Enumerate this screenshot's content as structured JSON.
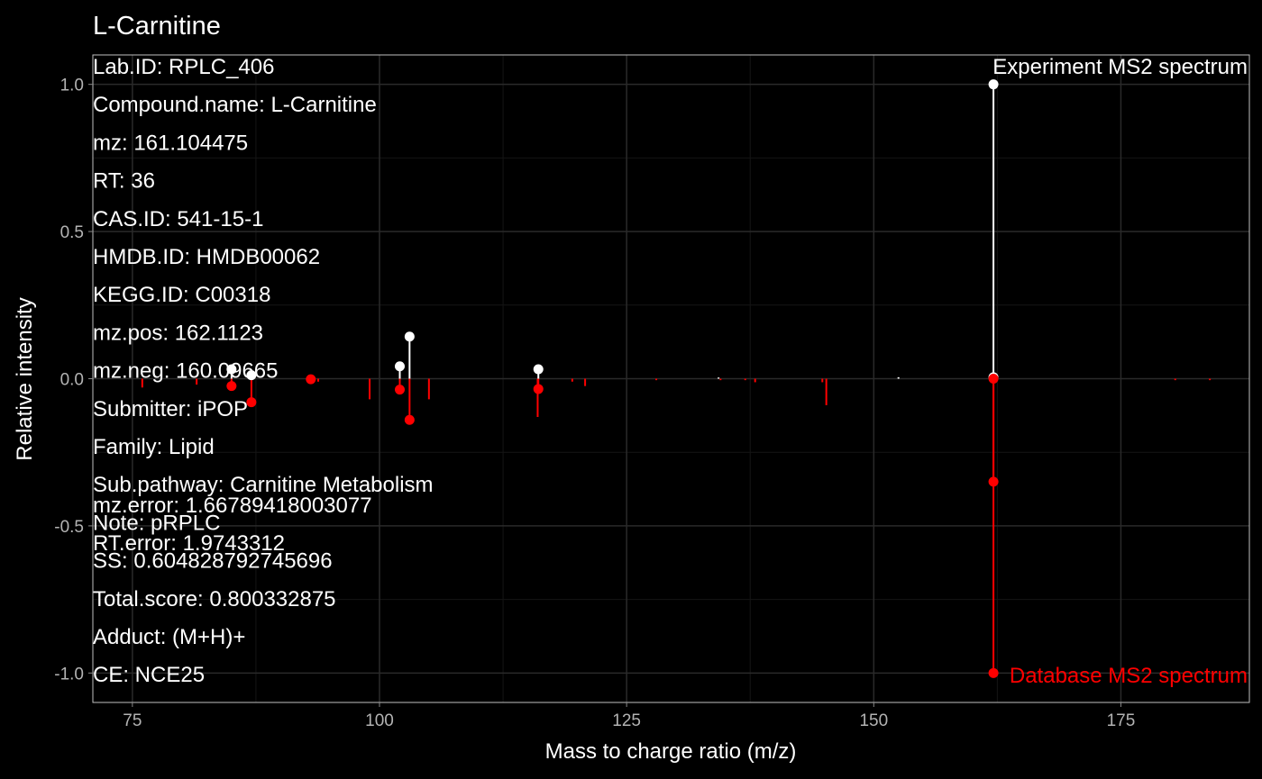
{
  "chart_data": {
    "type": "stem",
    "title": "L-Carnitine",
    "xlabel": "Mass to charge ratio (m/z)",
    "ylabel": "Relative intensity",
    "xlim": [
      71,
      188
    ],
    "ylim": [
      -1.1,
      1.1
    ],
    "x_ticks": [
      75,
      100,
      125,
      150,
      175
    ],
    "y_ticks": [
      1.0,
      0.5,
      0.0,
      -0.5,
      -1.0
    ],
    "x_tick_labels": [
      "75",
      "100",
      "125",
      "150",
      "175"
    ],
    "y_tick_labels": [
      "1.0",
      "0.5",
      "0.0",
      "-0.5",
      "-1.0"
    ],
    "grid": true,
    "colors": {
      "background": "#000000",
      "panel_border": "#bfbfbf",
      "grid_major": "#2a2a2a",
      "grid_minor": "#151515",
      "experiment": "#ffffff",
      "database": "#ff0000",
      "text": "#ffffff",
      "tick_text": "#b3b3b3"
    },
    "annotations": {
      "experiment_label": "Experiment MS2 spectrum",
      "database_label": "Database MS2 spectrum"
    },
    "info_lines": [
      "Lab.ID: RPLC_406",
      "Compound.name: L-Carnitine",
      "mz: 161.104475",
      "RT: 36",
      "CAS.ID: 541-15-1",
      "HMDB.ID: HMDB00062",
      "KEGG.ID: C00318",
      "mz.pos: 162.1123",
      "mz.neg: 160.09665",
      "Submitter: iPOP",
      "Family: Lipid",
      "Sub.pathway: Carnitine Metabolism",
      "Note: pRPLC",
      "SS: 0.604828792745696",
      "Total.score: 0.800332875",
      "Adduct: (M+H)+",
      "CE: NCE25"
    ],
    "info_overlay_lines": [
      "mz.error: 1.66789418003077",
      "RT.error: 1.9743312"
    ],
    "series": [
      {
        "name": "Experiment MS2 spectrum",
        "points": [
          {
            "x": 85.03,
            "y": 0.032
          },
          {
            "x": 87.04,
            "y": 0.012
          },
          {
            "x": 102.05,
            "y": 0.042
          },
          {
            "x": 103.04,
            "y": 0.143
          },
          {
            "x": 116.07,
            "y": 0.032
          },
          {
            "x": 162.11,
            "y": 0.005
          },
          {
            "x": 162.11,
            "y": 1.0
          }
        ]
      },
      {
        "name": "Database MS2 spectrum",
        "points": [
          {
            "x": 85.03,
            "y": -0.025
          },
          {
            "x": 87.04,
            "y": -0.08
          },
          {
            "x": 93.05,
            "y": -0.002
          },
          {
            "x": 102.05,
            "y": -0.037
          },
          {
            "x": 103.04,
            "y": -0.14
          },
          {
            "x": 116.07,
            "y": -0.035
          },
          {
            "x": 162.11,
            "y": 0.0
          },
          {
            "x": 162.11,
            "y": -0.35
          },
          {
            "x": 162.11,
            "y": -1.0
          }
        ],
        "unmatched_lines": [
          {
            "x": 76.0,
            "y": -0.03
          },
          {
            "x": 81.5,
            "y": -0.02
          },
          {
            "x": 93.8,
            "y": -0.01
          },
          {
            "x": 99.0,
            "y": -0.07
          },
          {
            "x": 105.0,
            "y": -0.07
          },
          {
            "x": 116.0,
            "y": -0.13
          },
          {
            "x": 119.5,
            "y": -0.01
          },
          {
            "x": 120.8,
            "y": -0.025
          },
          {
            "x": 128.0,
            "y": -0.005
          },
          {
            "x": 134.5,
            "y": -0.005
          },
          {
            "x": 137.0,
            "y": -0.005
          },
          {
            "x": 138.0,
            "y": -0.012
          },
          {
            "x": 144.8,
            "y": -0.012
          },
          {
            "x": 145.2,
            "y": -0.09
          },
          {
            "x": 180.5,
            "y": -0.005
          },
          {
            "x": 184.0,
            "y": -0.005
          }
        ],
        "unmatched_experiment_lines": [
          {
            "x": 134.3,
            "y": 0.004
          },
          {
            "x": 152.5,
            "y": 0.005
          }
        ]
      }
    ]
  }
}
